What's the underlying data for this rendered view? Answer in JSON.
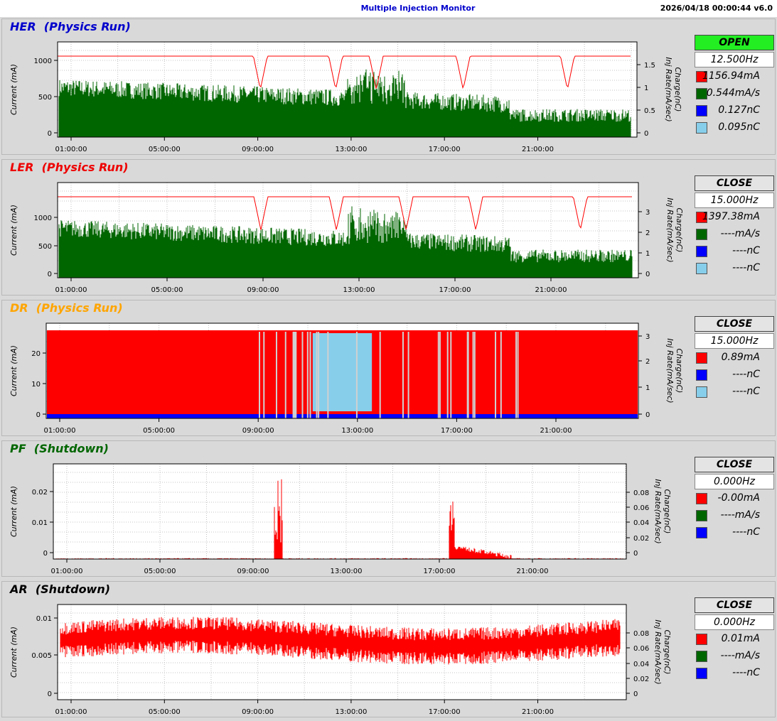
{
  "header": {
    "title": "Multiple Injection Monitor",
    "datetime": "2026/04/18 00:00:44  v6.0"
  },
  "time_ticks": [
    "01:00:00",
    "05:00:00",
    "09:00:00",
    "13:00:00",
    "17:00:00",
    "21:00:00"
  ],
  "panels": [
    {
      "key": "her",
      "title": "HER",
      "mode": "(Physics Run)",
      "title_color": "#0000cc",
      "y_label": "Current (mA)",
      "y2_label_a": "Charge(nC)",
      "y2_label_b": "Inj Rate(mA/sec)",
      "y_ticks": [
        "0",
        "500",
        "1000"
      ],
      "y2_ticks": [
        "0",
        "0.5",
        "1",
        "1.5"
      ],
      "status": "OPEN",
      "status_bg": "#22ee22",
      "rate": "12.500Hz",
      "readouts": [
        {
          "color": "#ff0000",
          "value": "1156.94mA"
        },
        {
          "color": "#006600",
          "value": "0.544mA/s"
        },
        {
          "color": "#0000ff",
          "value": "0.127nC"
        },
        {
          "color": "#87ceeb",
          "value": "0.095nC"
        }
      ]
    },
    {
      "key": "ler",
      "title": "LER",
      "mode": "(Physics Run)",
      "title_color": "#ee0000",
      "y_label": "Current (mA)",
      "y2_label_a": "Charge(nC)",
      "y2_label_b": "Inj Rate(mA/sec)",
      "y_ticks": [
        "0",
        "500",
        "1000"
      ],
      "y2_ticks": [
        "0",
        "1",
        "2",
        "3"
      ],
      "status": "CLOSE",
      "status_bg": "#e4e4e4",
      "rate": "15.000Hz",
      "readouts": [
        {
          "color": "#ff0000",
          "value": "1397.38mA"
        },
        {
          "color": "#006600",
          "value": "----mA/s"
        },
        {
          "color": "#0000ff",
          "value": "----nC"
        },
        {
          "color": "#87ceeb",
          "value": "----nC"
        }
      ]
    },
    {
      "key": "dr",
      "title": "DR",
      "mode": "(Physics Run)",
      "title_color": "#ffa500",
      "y_label": "Current (mA)",
      "y2_label_a": "Charge(nC)",
      "y2_label_b": "Inj Rate(mA/sec)",
      "y_ticks": [
        "0",
        "10",
        "20"
      ],
      "y2_ticks": [
        "0",
        "1",
        "2",
        "3"
      ],
      "status": "CLOSE",
      "status_bg": "#e4e4e4",
      "rate": "15.000Hz",
      "readouts": [
        {
          "color": "#ff0000",
          "value": "0.89mA"
        },
        {
          "color": "#0000ff",
          "value": "----nC"
        },
        {
          "color": "#87ceeb",
          "value": "----nC"
        }
      ]
    },
    {
      "key": "pf",
      "title": "PF",
      "mode": "(Shutdown)",
      "title_color": "#006600",
      "y_label": "Current (mA)",
      "y2_label_a": "Charge(nC)",
      "y2_label_b": "Inj Rate(mA/sec)",
      "y_ticks": [
        "0",
        "0.01",
        "0.02"
      ],
      "y2_ticks": [
        "0",
        "0.02",
        "0.04",
        "0.06",
        "0.08"
      ],
      "status": "CLOSE",
      "status_bg": "#e4e4e4",
      "rate": "0.000Hz",
      "readouts": [
        {
          "color": "#ff0000",
          "value": "-0.00mA"
        },
        {
          "color": "#006600",
          "value": "----mA/s"
        },
        {
          "color": "#0000ff",
          "value": "----nC"
        }
      ]
    },
    {
      "key": "ar",
      "title": "AR",
      "mode": "(Shutdown)",
      "title_color": "#000000",
      "y_label": "Current (mA)",
      "y2_label_a": "Charge(nC)",
      "y2_label_b": "Inj Rate(mA/sec)",
      "y_ticks": [
        "0",
        "0.005",
        "0.01"
      ],
      "y2_ticks": [
        "0",
        "0.02",
        "0.04",
        "0.06",
        "0.08"
      ],
      "status": "CLOSE",
      "status_bg": "#e4e4e4",
      "rate": "0.000Hz",
      "readouts": [
        {
          "color": "#ff0000",
          "value": "0.01mA"
        },
        {
          "color": "#006600",
          "value": "----mA/s"
        },
        {
          "color": "#0000ff",
          "value": "----nC"
        }
      ]
    }
  ]
}
